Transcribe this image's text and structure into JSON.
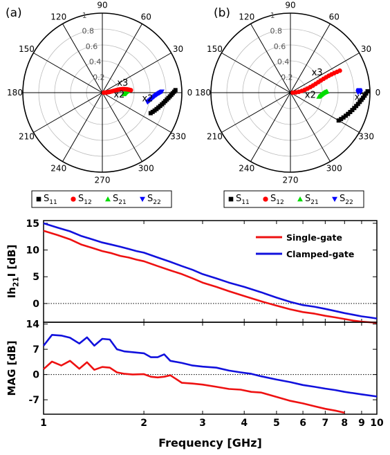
{
  "colors": {
    "s11": "#000000",
    "s12": "#ff0000",
    "s21": "#00dd00",
    "s22": "#0000ff",
    "single": "#ee1111",
    "clamped": "#1111dd",
    "grid": "#bbbbbb"
  },
  "polar": {
    "angle_labels": [
      "0",
      "30",
      "60",
      "90",
      "120",
      "150",
      "180",
      "210",
      "240",
      "270",
      "300",
      "330"
    ],
    "radial_labels": [
      "0.2",
      "0.4",
      "0.6",
      "0.8",
      "1"
    ],
    "legend": [
      {
        "key": "s11",
        "main": "S",
        "sub": "11"
      },
      {
        "key": "s12",
        "main": "S",
        "sub": "12"
      },
      {
        "key": "s21",
        "main": "S",
        "sub": "21"
      },
      {
        "key": "s22",
        "main": "S",
        "sub": "22"
      }
    ],
    "panels": [
      {
        "label": "(a)",
        "annotations": [
          {
            "text": "x3",
            "r": 0.27,
            "theta": 19
          },
          {
            "text": "x2",
            "r": 0.22,
            "theta": -16
          },
          {
            "text": "x2",
            "r": 0.58,
            "theta": -11
          }
        ],
        "series": {
          "s11": {
            "r_start": 0.92,
            "th_start": 2,
            "r_end": 0.66,
            "th_end": -23
          },
          "s12": {
            "r_start": 0.02,
            "th_start": 0,
            "r_end": 0.36,
            "th_end": 5
          },
          "s21": {
            "r_start": 0.32,
            "th_start": 4,
            "r_end": 0.27,
            "th_end": -4
          },
          "s22": {
            "r_start": 0.75,
            "th_start": 1,
            "r_end": 0.58,
            "th_end": -12
          }
        }
      },
      {
        "label": "(b)",
        "annotations": [
          {
            "text": "x3",
            "r": 0.4,
            "theta": 33
          },
          {
            "text": "x2",
            "r": 0.26,
            "theta": -15
          },
          {
            "text": "x2",
            "r": 0.88,
            "theta": -6
          }
        ],
        "series": {
          "s11": {
            "r_start": 0.97,
            "th_start": 1,
            "r_end": 0.7,
            "th_end": -30
          },
          "s12": {
            "r_start": 0.03,
            "th_start": 0,
            "r_end": 0.68,
            "th_end": 24
          },
          "s21": {
            "r_start": 0.46,
            "th_start": 2,
            "r_end": 0.36,
            "th_end": -8
          },
          "s22": {
            "r_start": 0.88,
            "th_start": 0,
            "r_end": 0.85,
            "th_end": 0
          }
        }
      }
    ]
  },
  "chart_data": [
    {
      "type": "line",
      "ylabel": "Ih21I [dB]",
      "ylabel_parts": {
        "main": "Ih",
        "sub": "21",
        "rest": "I [dB]"
      },
      "x_scale": "log",
      "xlim": [
        1,
        10
      ],
      "ylim": [
        -3.5,
        15.5
      ],
      "yticks": [
        "15",
        "10",
        "5",
        "0"
      ],
      "legend_position": "top-right",
      "legend": [
        "Single-gate",
        "Clamped-gate"
      ],
      "series": [
        {
          "name": "Single-gate",
          "color_key": "single",
          "x": [
            1.0,
            1.1,
            1.2,
            1.3,
            1.4,
            1.5,
            1.6,
            1.7,
            1.8,
            1.9,
            2.0,
            2.2,
            2.4,
            2.6,
            2.8,
            3.0,
            3.3,
            3.6,
            4.0,
            4.5,
            5.0,
            5.5,
            6.0,
            6.5,
            7.0,
            7.5,
            8.0,
            8.5,
            9.0,
            9.5,
            10.0
          ],
          "y": [
            13.6,
            12.8,
            12.0,
            11.0,
            10.4,
            9.8,
            9.4,
            8.9,
            8.6,
            8.2,
            7.9,
            7.0,
            6.2,
            5.5,
            4.7,
            3.9,
            3.1,
            2.3,
            1.4,
            0.4,
            -0.4,
            -1.1,
            -1.6,
            -1.9,
            -2.3,
            -2.6,
            -2.9,
            -3.2,
            -3.4,
            -3.5,
            -3.6
          ]
        },
        {
          "name": "Clamped-gate",
          "color_key": "clamped",
          "x": [
            1.0,
            1.1,
            1.2,
            1.3,
            1.4,
            1.5,
            1.6,
            1.7,
            1.8,
            1.9,
            2.0,
            2.2,
            2.4,
            2.6,
            2.8,
            3.0,
            3.3,
            3.6,
            4.0,
            4.5,
            5.0,
            5.5,
            6.0,
            6.5,
            7.0,
            7.5,
            8.0,
            8.5,
            9.0,
            9.5,
            10.0
          ],
          "y": [
            15.0,
            14.2,
            13.5,
            12.6,
            12.0,
            11.4,
            11.0,
            10.6,
            10.2,
            9.8,
            9.5,
            8.6,
            7.8,
            7.0,
            6.3,
            5.5,
            4.7,
            3.9,
            3.1,
            2.1,
            1.1,
            0.3,
            -0.3,
            -0.6,
            -1.0,
            -1.4,
            -1.8,
            -2.1,
            -2.4,
            -2.6,
            -2.8
          ]
        }
      ]
    },
    {
      "type": "line",
      "ylabel": "MAG [dB]",
      "xlabel": "Frequency [GHz]",
      "x_scale": "log",
      "xlim": [
        1,
        10
      ],
      "ylim": [
        -11,
        14.5
      ],
      "yticks": [
        "14",
        "7",
        "0",
        "-7"
      ],
      "xticks": [
        "1",
        "2",
        "3",
        "4",
        "5",
        "6",
        "7",
        "8",
        "9",
        "10"
      ],
      "series": [
        {
          "name": "Single-gate",
          "color_key": "single",
          "x": [
            1.0,
            1.06,
            1.13,
            1.2,
            1.28,
            1.35,
            1.42,
            1.5,
            1.58,
            1.66,
            1.75,
            1.85,
            2.0,
            2.1,
            2.2,
            2.3,
            2.4,
            2.6,
            2.8,
            3.0,
            3.3,
            3.6,
            3.9,
            4.2,
            4.5,
            5.0,
            5.5,
            6.0,
            6.5,
            7.0,
            7.5,
            8.0
          ],
          "y": [
            1.5,
            3.6,
            2.5,
            3.8,
            1.6,
            3.4,
            1.3,
            2.1,
            1.9,
            0.6,
            0.2,
            0.0,
            0.1,
            -0.6,
            -0.8,
            -0.6,
            -0.2,
            -2.3,
            -2.5,
            -2.8,
            -3.4,
            -4.0,
            -4.2,
            -4.8,
            -5.0,
            -6.2,
            -7.3,
            -8.0,
            -8.8,
            -9.5,
            -10.0,
            -10.6
          ]
        },
        {
          "name": "Clamped-gate",
          "color_key": "clamped",
          "x": [
            1.0,
            1.06,
            1.13,
            1.2,
            1.28,
            1.35,
            1.42,
            1.5,
            1.58,
            1.66,
            1.75,
            1.85,
            2.0,
            2.1,
            2.2,
            2.3,
            2.4,
            2.6,
            2.8,
            3.0,
            3.3,
            3.6,
            3.9,
            4.2,
            4.5,
            5.0,
            5.5,
            6.0,
            6.5,
            7.0,
            7.5,
            8.0,
            9.0,
            10.0
          ],
          "y": [
            8.0,
            11.0,
            10.8,
            10.2,
            8.6,
            10.3,
            8.0,
            9.9,
            9.7,
            7.0,
            6.4,
            6.2,
            5.9,
            4.8,
            4.8,
            5.6,
            3.8,
            3.2,
            2.5,
            2.2,
            1.9,
            1.1,
            0.6,
            0.2,
            -0.5,
            -1.4,
            -2.1,
            -2.9,
            -3.4,
            -3.9,
            -4.3,
            -4.8,
            -5.5,
            -6.1
          ]
        }
      ]
    }
  ]
}
